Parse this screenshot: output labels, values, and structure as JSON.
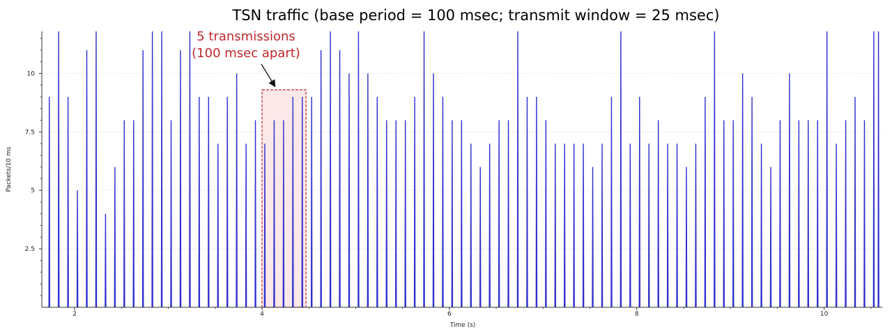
{
  "chart_data": {
    "type": "line",
    "title": "TSN traffic (base period = 100 msec; transmit window = 25 msec)",
    "xlabel": "Time (s)",
    "ylabel": "Packets/10 ms",
    "xlim": [
      1.65,
      10.62
    ],
    "ylim": [
      0,
      11.8
    ],
    "xticks": [
      2,
      4,
      6,
      8,
      10
    ],
    "yticks": [
      2.5,
      5,
      7.5,
      10
    ],
    "ytick_labels": [
      "2.5",
      "5",
      "7.5",
      "10"
    ],
    "grid": true,
    "legend": "none",
    "series": [
      {
        "color": "#2f2fcf",
        "spike_width_s": 0.008,
        "points": [
          [
            1.73,
            9
          ],
          [
            1.83,
            12
          ],
          [
            1.93,
            9
          ],
          [
            2.03,
            5
          ],
          [
            2.13,
            11
          ],
          [
            2.23,
            12
          ],
          [
            2.33,
            4
          ],
          [
            2.43,
            6
          ],
          [
            2.53,
            8
          ],
          [
            2.63,
            8
          ],
          [
            2.73,
            11
          ],
          [
            2.83,
            12
          ],
          [
            2.93,
            12
          ],
          [
            3.03,
            8
          ],
          [
            3.13,
            11
          ],
          [
            3.23,
            12
          ],
          [
            3.33,
            9
          ],
          [
            3.43,
            9
          ],
          [
            3.53,
            7
          ],
          [
            3.63,
            9
          ],
          [
            3.73,
            10
          ],
          [
            3.83,
            7
          ],
          [
            3.93,
            8
          ],
          [
            4.03,
            7
          ],
          [
            4.13,
            8
          ],
          [
            4.23,
            8
          ],
          [
            4.33,
            9
          ],
          [
            4.43,
            9
          ],
          [
            4.53,
            9
          ],
          [
            4.63,
            11
          ],
          [
            4.73,
            12
          ],
          [
            4.83,
            11
          ],
          [
            4.93,
            10
          ],
          [
            5.03,
            12
          ],
          [
            5.13,
            10
          ],
          [
            5.23,
            9
          ],
          [
            5.33,
            8
          ],
          [
            5.43,
            8
          ],
          [
            5.53,
            8
          ],
          [
            5.63,
            9
          ],
          [
            5.73,
            12
          ],
          [
            5.83,
            10
          ],
          [
            5.93,
            9
          ],
          [
            6.03,
            8
          ],
          [
            6.13,
            8
          ],
          [
            6.23,
            7
          ],
          [
            6.33,
            6
          ],
          [
            6.43,
            7
          ],
          [
            6.53,
            8
          ],
          [
            6.63,
            8
          ],
          [
            6.73,
            12
          ],
          [
            6.83,
            9
          ],
          [
            6.93,
            9
          ],
          [
            7.03,
            8
          ],
          [
            7.13,
            7
          ],
          [
            7.23,
            7
          ],
          [
            7.33,
            7
          ],
          [
            7.43,
            7
          ],
          [
            7.53,
            6
          ],
          [
            7.63,
            7
          ],
          [
            7.73,
            9
          ],
          [
            7.83,
            12
          ],
          [
            7.93,
            7
          ],
          [
            8.03,
            9
          ],
          [
            8.13,
            7
          ],
          [
            8.23,
            8
          ],
          [
            8.33,
            7
          ],
          [
            8.43,
            7
          ],
          [
            8.53,
            6
          ],
          [
            8.63,
            7
          ],
          [
            8.73,
            9
          ],
          [
            8.83,
            12
          ],
          [
            8.93,
            8
          ],
          [
            9.03,
            8
          ],
          [
            9.13,
            10
          ],
          [
            9.23,
            9
          ],
          [
            9.33,
            7
          ],
          [
            9.43,
            6
          ],
          [
            9.53,
            8
          ],
          [
            9.63,
            10
          ],
          [
            9.73,
            8
          ],
          [
            9.83,
            8
          ],
          [
            9.93,
            8
          ],
          [
            10.03,
            12
          ],
          [
            10.13,
            7
          ],
          [
            10.23,
            8
          ],
          [
            10.33,
            9
          ],
          [
            10.43,
            8
          ],
          [
            10.53,
            12
          ],
          [
            10.58,
            12
          ]
        ]
      }
    ],
    "annotation": {
      "text_line1": "5 transmissions",
      "text_line2": "(100 msec apart)",
      "x_range": [
        4.0,
        4.47
      ],
      "y_top": 9.3,
      "box_color": "#c0282d",
      "fill": "#fbe8e8"
    }
  }
}
